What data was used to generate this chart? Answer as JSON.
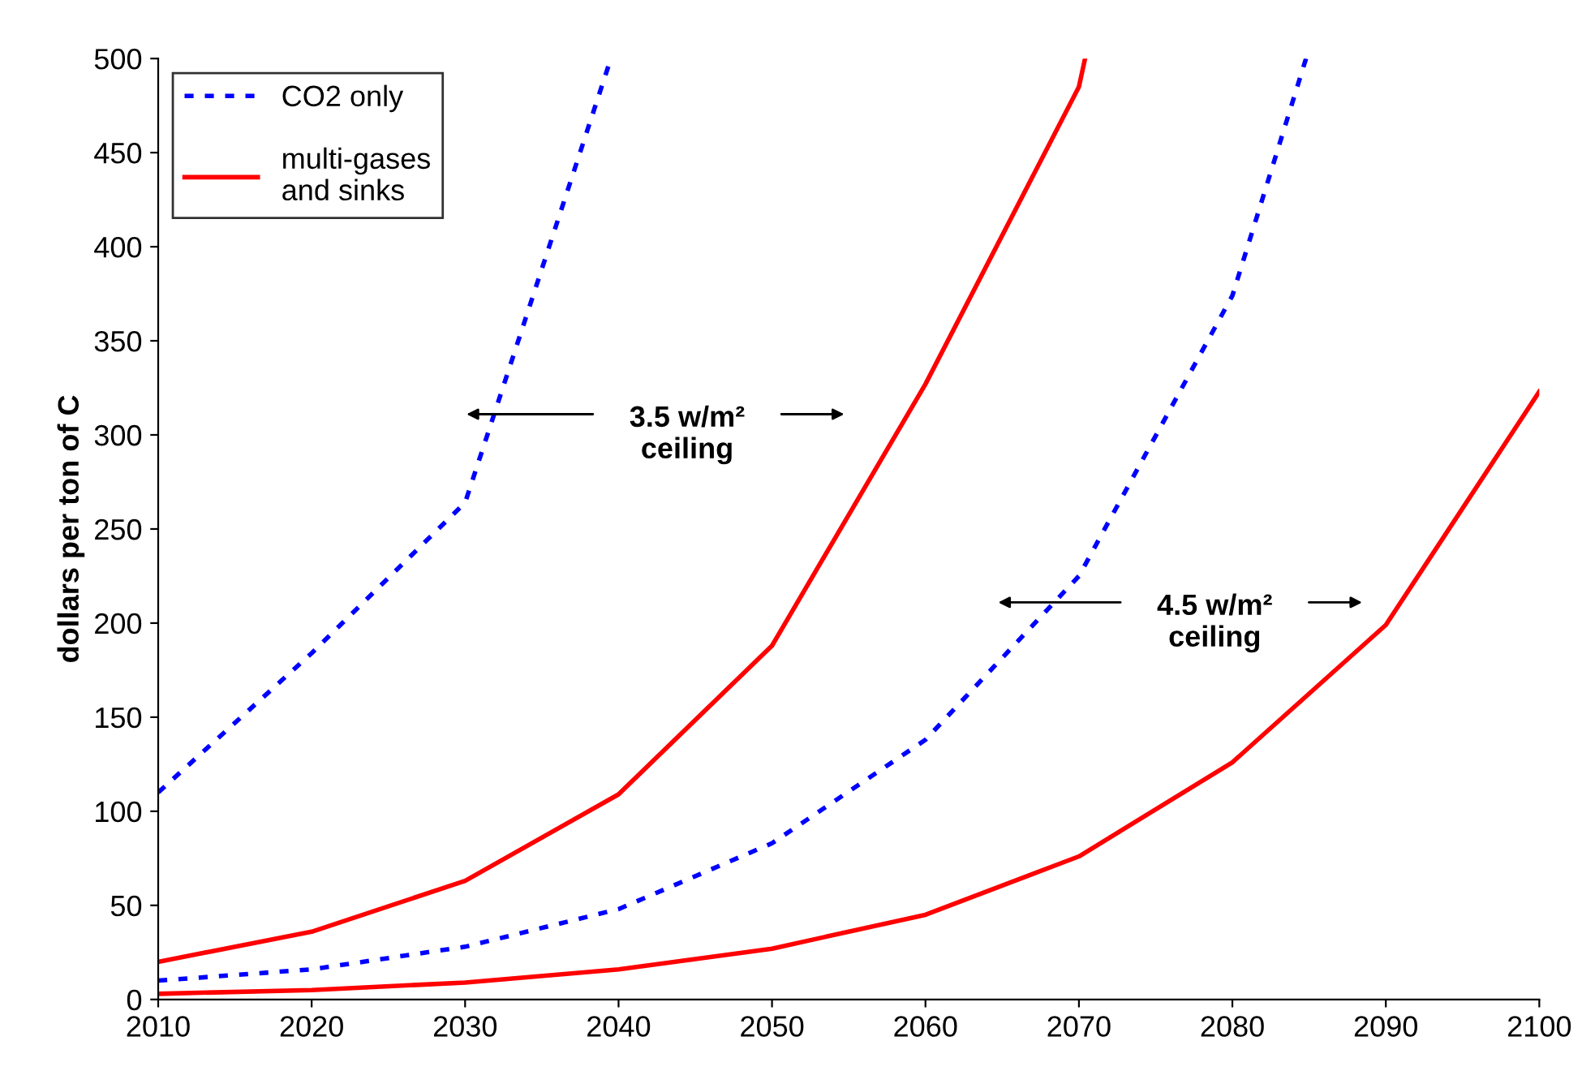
{
  "chart_data": {
    "type": "line",
    "ylabel": "dollars per ton of C",
    "xlim": [
      2010,
      2100
    ],
    "ylim": [
      0,
      500
    ],
    "xticks": [
      2010,
      2020,
      2030,
      2040,
      2050,
      2060,
      2070,
      2080,
      2090,
      2100
    ],
    "yticks": [
      0,
      50,
      100,
      150,
      200,
      250,
      300,
      350,
      400,
      450,
      500
    ],
    "grid": false,
    "legend": "top left",
    "marker": "none",
    "series": [
      {
        "name": "CO2 only",
        "color": "#0000ff",
        "line_style": "dotted",
        "x": [
          2010,
          2020,
          2030,
          2039.5
        ],
        "values": [
          110,
          184,
          264,
          500
        ]
      },
      {
        "name": "multi-gases\nand sinks",
        "color": "#ff0000",
        "line_style": "solid",
        "x": [
          2010,
          2020,
          2030,
          2040,
          2050,
          2060,
          2070,
          2070.4
        ],
        "values": [
          20,
          36,
          63,
          109,
          188,
          327,
          485,
          500
        ]
      },
      {
        "color": "#0000ff",
        "line_style": "dotted",
        "x": [
          2010,
          2020,
          2030,
          2040,
          2050,
          2060,
          2070,
          2080,
          2084.8
        ],
        "values": [
          10,
          16,
          28,
          48,
          83,
          138,
          225,
          374,
          500
        ]
      },
      {
        "color": "#ff0000",
        "line_style": "solid",
        "x": [
          2010,
          2020,
          2030,
          2040,
          2050,
          2060,
          2070,
          2080,
          2090,
          2100
        ],
        "values": [
          3,
          5,
          9,
          16,
          27,
          45,
          76,
          126,
          199,
          323
        ]
      }
    ],
    "annotations": [
      "3.5 w/m²\nceiling",
      "4.5 w/m²\nceiling"
    ]
  }
}
